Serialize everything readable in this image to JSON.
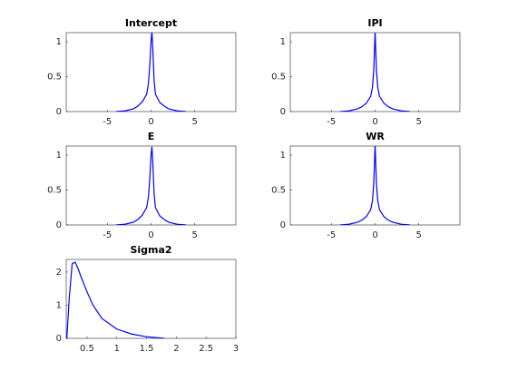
{
  "chart_data": [
    {
      "type": "line",
      "title": "Intercept",
      "x": [
        -4,
        -3,
        -2,
        -1.5,
        -1,
        -0.5,
        -0.3,
        -0.15,
        0,
        0.1,
        0.2,
        0.35,
        0.5,
        1,
        1.5,
        2,
        3,
        4
      ],
      "series": [
        {
          "color": "#0000ff",
          "values": [
            0,
            0.01,
            0.04,
            0.08,
            0.14,
            0.25,
            0.4,
            0.65,
            1.0,
            1.15,
            0.9,
            0.45,
            0.25,
            0.13,
            0.08,
            0.04,
            0.01,
            0
          ]
        }
      ],
      "xlim": [
        -9.7,
        9.7
      ],
      "ylim": [
        0,
        1.13
      ],
      "xticks": [
        -5,
        0,
        5
      ],
      "yticks": [
        0,
        0.5,
        1
      ]
    },
    {
      "type": "line",
      "title": "IPI",
      "x": [
        -4,
        -3,
        -2,
        -1.5,
        -1,
        -0.5,
        -0.3,
        -0.15,
        0,
        0.15,
        0.3,
        0.5,
        1,
        1.5,
        2,
        3,
        4
      ],
      "series": [
        {
          "color": "#0000ff",
          "values": [
            0,
            0.01,
            0.04,
            0.07,
            0.12,
            0.22,
            0.35,
            0.6,
            1.15,
            0.6,
            0.35,
            0.22,
            0.12,
            0.07,
            0.04,
            0.01,
            0
          ]
        }
      ],
      "xlim": [
        -9.7,
        9.7
      ],
      "ylim": [
        0,
        1.13
      ],
      "xticks": [
        -5,
        0,
        5
      ],
      "yticks": [
        0,
        0.5,
        1
      ]
    },
    {
      "type": "line",
      "title": "E",
      "x": [
        -4,
        -3,
        -2,
        -1.5,
        -1,
        -0.5,
        -0.3,
        -0.15,
        0,
        0.1,
        0.2,
        0.35,
        0.5,
        1,
        1.5,
        2,
        3,
        4
      ],
      "series": [
        {
          "color": "#0000ff",
          "values": [
            0,
            0.01,
            0.04,
            0.08,
            0.14,
            0.25,
            0.4,
            0.65,
            1.0,
            1.12,
            0.9,
            0.45,
            0.25,
            0.13,
            0.08,
            0.04,
            0.01,
            0
          ]
        }
      ],
      "xlim": [
        -9.7,
        9.7
      ],
      "ylim": [
        0,
        1.13
      ],
      "xticks": [
        -5,
        0,
        5
      ],
      "yticks": [
        0,
        0.5,
        1
      ]
    },
    {
      "type": "line",
      "title": "WR",
      "x": [
        -4,
        -3,
        -2,
        -1.5,
        -1,
        -0.5,
        -0.3,
        -0.15,
        0,
        0.15,
        0.3,
        0.5,
        1,
        1.5,
        2,
        3,
        4
      ],
      "series": [
        {
          "color": "#0000ff",
          "values": [
            0,
            0.01,
            0.04,
            0.07,
            0.12,
            0.22,
            0.35,
            0.6,
            1.15,
            0.6,
            0.35,
            0.22,
            0.12,
            0.07,
            0.04,
            0.01,
            0
          ]
        }
      ],
      "xlim": [
        -9.7,
        9.7
      ],
      "ylim": [
        0,
        1.13
      ],
      "xticks": [
        -5,
        0,
        5
      ],
      "yticks": [
        0,
        0.5,
        1
      ]
    },
    {
      "type": "line",
      "title": "Sigma2",
      "x": [
        0.16,
        0.2,
        0.25,
        0.3,
        0.35,
        0.4,
        0.5,
        0.6,
        0.75,
        1,
        1.25,
        1.5,
        1.8
      ],
      "series": [
        {
          "color": "#0000ff",
          "values": [
            0,
            1.2,
            2.25,
            2.3,
            2.1,
            1.85,
            1.4,
            1.0,
            0.6,
            0.28,
            0.13,
            0.05,
            0
          ]
        }
      ],
      "xlim": [
        0.15,
        3
      ],
      "ylim": [
        0,
        2.38
      ],
      "xticks": [
        0.5,
        1,
        1.5,
        2,
        2.5,
        3
      ],
      "yticks": [
        0,
        1,
        2
      ]
    }
  ]
}
